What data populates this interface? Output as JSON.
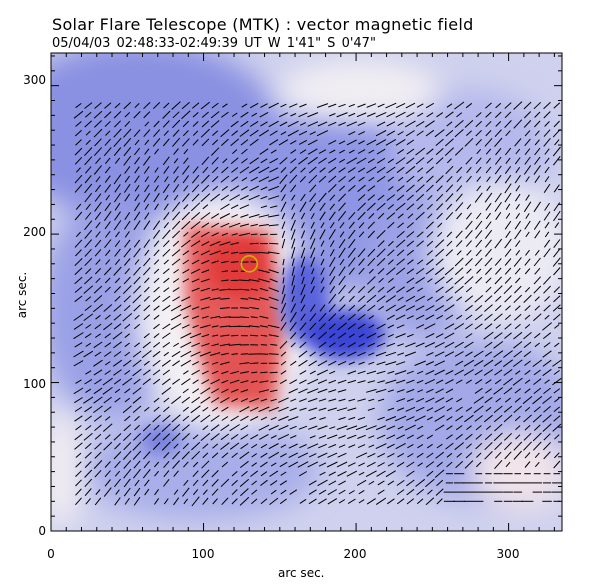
{
  "header": {
    "title": "Solar Flare Telescope (MTK) : vector magnetic field",
    "subtitle": "05/04/03   02:48:33-02:49:39 UT     W 1'41\"   S 0'47\""
  },
  "axes": {
    "xlabel": "arc sec.",
    "ylabel": "arc sec.",
    "xticks": [
      "0",
      "100",
      "200",
      "300"
    ],
    "yticks": [
      "0",
      "100",
      "200",
      "300"
    ],
    "xlim": [
      0,
      335
    ],
    "ylim": [
      0,
      322
    ]
  },
  "colors": {
    "positive": "#e63a3a",
    "negative": "#3a44e0",
    "background": "#e8e8f4",
    "vectors": "#000000",
    "marker": "#c8b400"
  },
  "map": {
    "marker_circle": {
      "x": 130,
      "y": 180
    }
  }
}
